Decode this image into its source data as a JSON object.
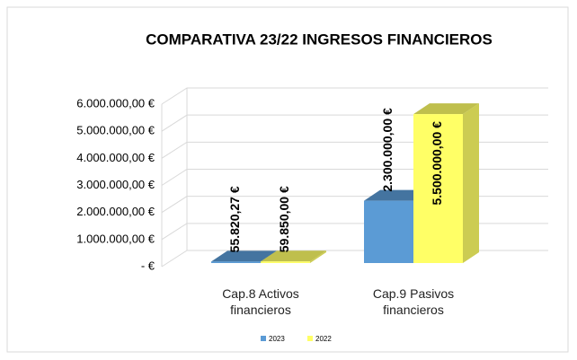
{
  "chart_data": {
    "type": "bar3d",
    "title": "COMPARATIVA 23/22   INGRESOS FINANCIEROS",
    "categories": [
      "Cap.8 Activos financieros",
      "Cap.9 Pasivos financieros"
    ],
    "series": [
      {
        "name": "2023",
        "color": "#5b9bd5",
        "values": [
          55820.27,
          2300000
        ],
        "value_labels": [
          "55.820,27 €",
          "2.300.000,00 €"
        ]
      },
      {
        "name": "2022",
        "color": "#ffff66",
        "values": [
          59850,
          5500000
        ],
        "value_labels": [
          "59.850,00 €",
          "5.500.000,00 €"
        ]
      }
    ],
    "ylim": [
      0,
      6000000
    ],
    "yticks": [
      {
        "value": 0,
        "label": "-   €"
      },
      {
        "value": 1000000,
        "label": "1.000.000,00 €"
      },
      {
        "value": 2000000,
        "label": "2.000.000,00 €"
      },
      {
        "value": 3000000,
        "label": "3.000.000,00 €"
      },
      {
        "value": 4000000,
        "label": "4.000.000,00 €"
      },
      {
        "value": 5000000,
        "label": "5.000.000,00 €"
      },
      {
        "value": 6000000,
        "label": "6.000.000,00 €"
      }
    ],
    "grid": true,
    "legend": "bottom"
  }
}
